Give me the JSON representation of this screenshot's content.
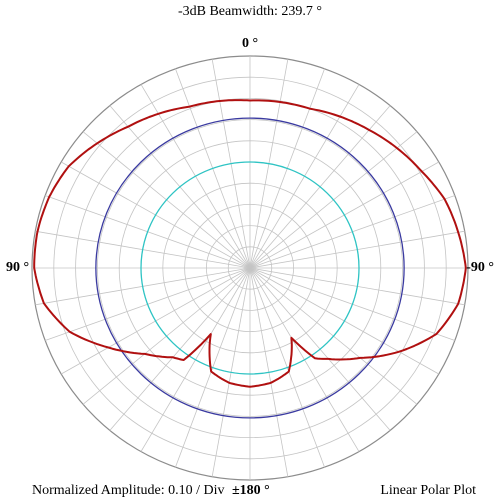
{
  "chart_data": {
    "type": "polar",
    "title": "-3dB Beamwidth: 239.7 °",
    "angle_labels": {
      "top": "0 °",
      "left": "90 °",
      "right": "-90 °",
      "bottom": "±180 °"
    },
    "radial_scale_label": "Normalized Amplitude: 0.10 / Div",
    "plot_type_label": "Linear Polar Plot",
    "radial_range": [
      0,
      1
    ],
    "radial_step": 0.1,
    "angular_grid_step_deg": 10,
    "grid": true,
    "angle_direction": "0 deg at top, +90 deg on the left, -90 deg on the right",
    "reference_circles": [
      {
        "r": 0.707,
        "color": "#3a3aa0"
      },
      {
        "r": 0.5,
        "color": "#2ec4c4"
      }
    ],
    "series": [
      {
        "color": "#b01010",
        "angles_deg": [
          0,
          20,
          40,
          60,
          70,
          80,
          90,
          100,
          110,
          120,
          130,
          140,
          145,
          150,
          160,
          170,
          180,
          190,
          200,
          210,
          215,
          220,
          230,
          240,
          250,
          260,
          270,
          280,
          290,
          300,
          320,
          340,
          360
        ],
        "r": [
          0.79,
          0.81,
          0.87,
          0.96,
          0.98,
          0.99,
          0.99,
          0.96,
          0.88,
          0.75,
          0.63,
          0.55,
          0.53,
          0.36,
          0.52,
          0.55,
          0.56,
          0.55,
          0.52,
          0.38,
          0.52,
          0.56,
          0.66,
          0.79,
          0.91,
          0.97,
          0.99,
          0.97,
          0.95,
          0.91,
          0.85,
          0.8,
          0.79
        ]
      }
    ]
  }
}
